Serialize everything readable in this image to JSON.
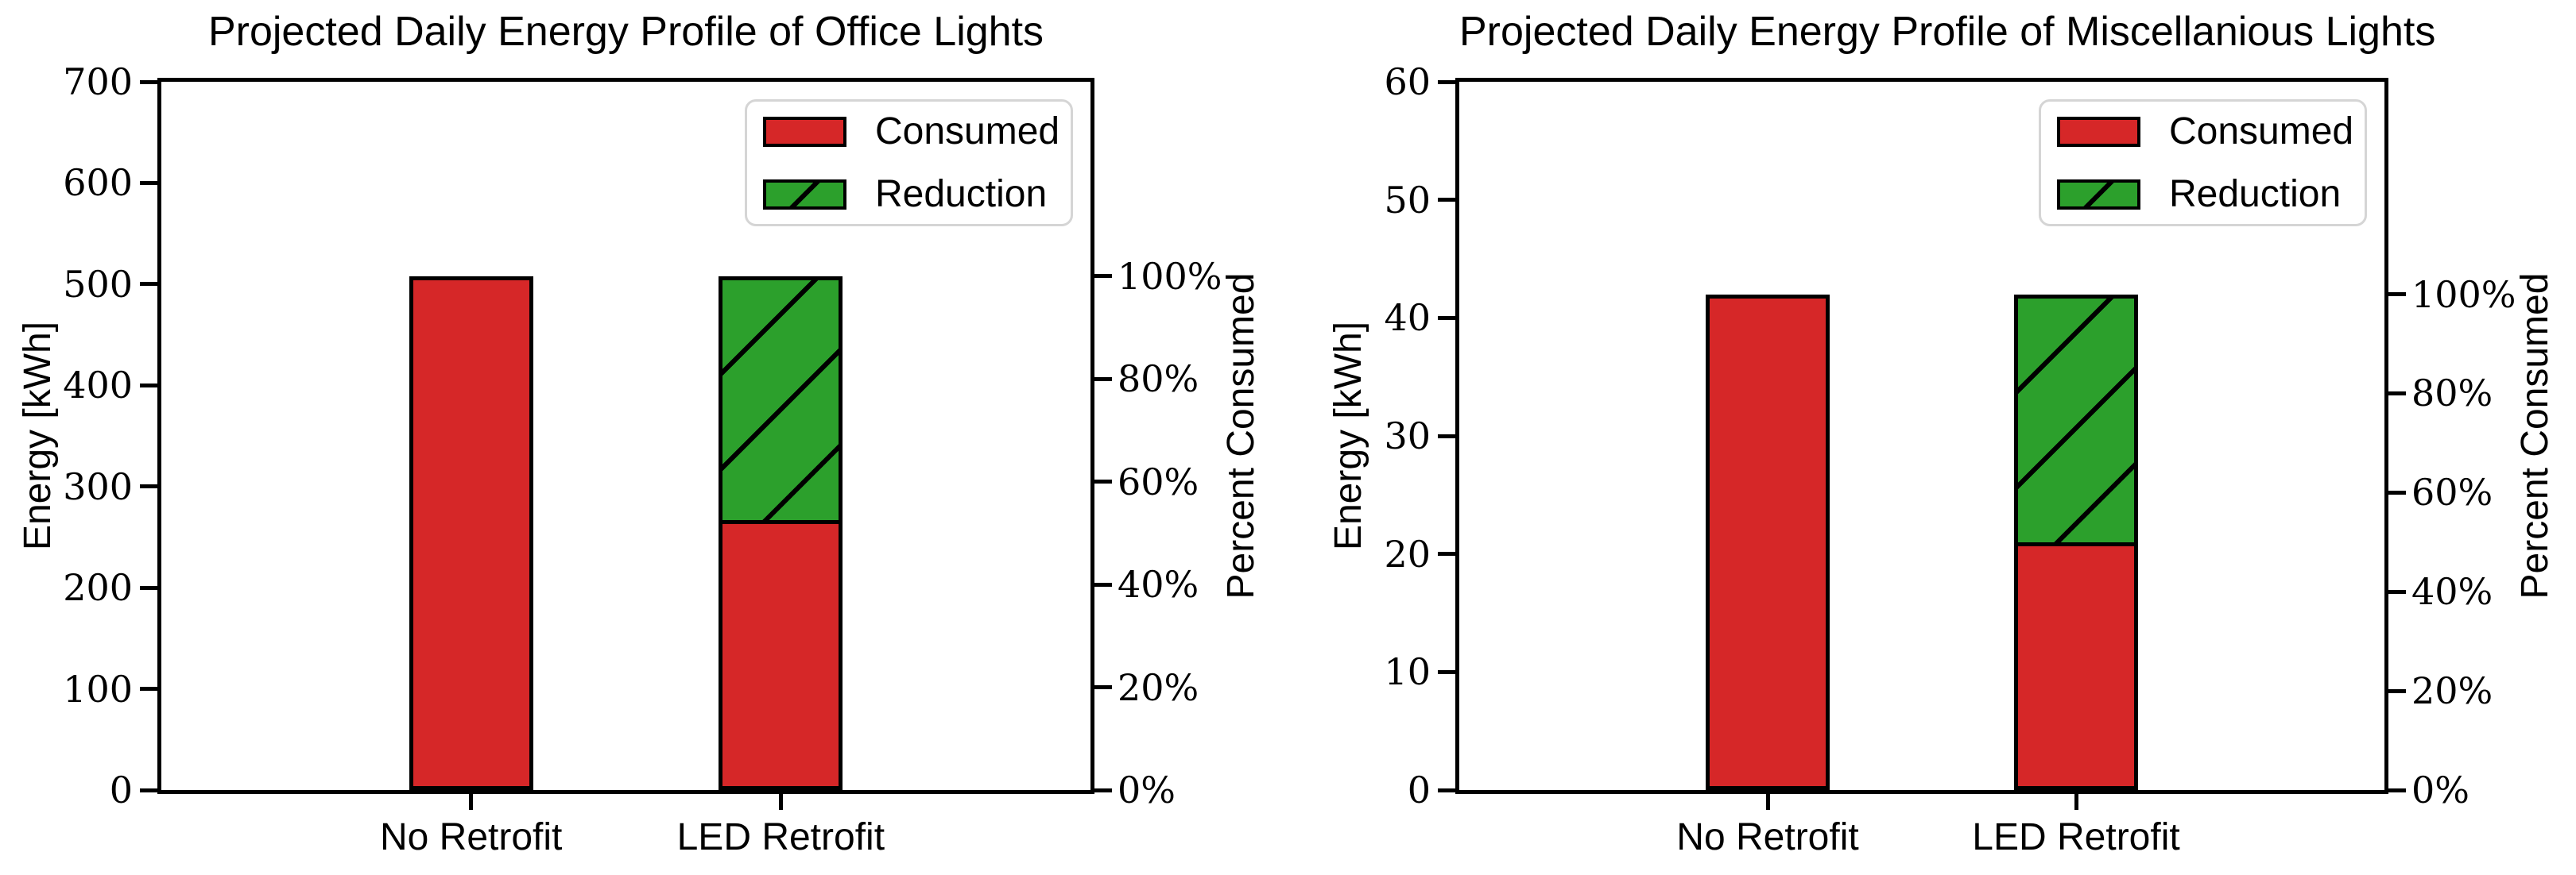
{
  "figure": {
    "background_color": "#ffffff",
    "text_color": "#000000"
  },
  "colors": {
    "consumed_fill": "#d62728",
    "reduction_fill": "#2ca02c",
    "bar_edge": "#000000",
    "legend_border": "#d5d5d5"
  },
  "chart_data": [
    {
      "type": "bar",
      "stacked": true,
      "title": "Projected Daily Energy Profile of Office Lights",
      "xlabel": "",
      "ylabel": "Energy [kWh]",
      "y2label": "Percent Consumed",
      "categories": [
        "No Retrofit",
        "LED Retrofit"
      ],
      "series": [
        {
          "name": "Consumed",
          "color": "#d62728",
          "hatch": "none",
          "values": [
            508,
            267
          ]
        },
        {
          "name": "Reduction",
          "color": "#2ca02c",
          "hatch": "/",
          "values": [
            0,
            241
          ]
        }
      ],
      "bar_totals": [
        508,
        508
      ],
      "ylim": [
        0,
        700
      ],
      "yticks": [
        0,
        100,
        200,
        300,
        400,
        500,
        600,
        700
      ],
      "y2ticks": [
        "0%",
        "20%",
        "40%",
        "60%",
        "80%",
        "100%"
      ],
      "y2_full_scale": 508,
      "led_percent_consumed_approx": 52.6,
      "grid": false,
      "legend": {
        "position": "upper right",
        "entries": [
          "Consumed",
          "Reduction"
        ]
      }
    },
    {
      "type": "bar",
      "stacked": true,
      "title": "Projected Daily Energy Profile of Miscellanious Lights",
      "xlabel": "",
      "ylabel": "Energy [kWh]",
      "y2label": "Percent Consumed",
      "categories": [
        "No Retrofit",
        "LED Retrofit"
      ],
      "series": [
        {
          "name": "Consumed",
          "color": "#d62728",
          "hatch": "none",
          "values": [
            42,
            21
          ]
        },
        {
          "name": "Reduction",
          "color": "#2ca02c",
          "hatch": "/",
          "values": [
            0,
            21
          ]
        }
      ],
      "bar_totals": [
        42,
        42
      ],
      "ylim": [
        0,
        60
      ],
      "yticks": [
        0,
        10,
        20,
        30,
        40,
        50,
        60
      ],
      "y2ticks": [
        "0%",
        "20%",
        "40%",
        "60%",
        "80%",
        "100%"
      ],
      "y2_full_scale": 42,
      "led_percent_consumed_approx": 50.0,
      "grid": false,
      "legend": {
        "position": "upper right",
        "entries": [
          "Consumed",
          "Reduction"
        ]
      }
    }
  ]
}
